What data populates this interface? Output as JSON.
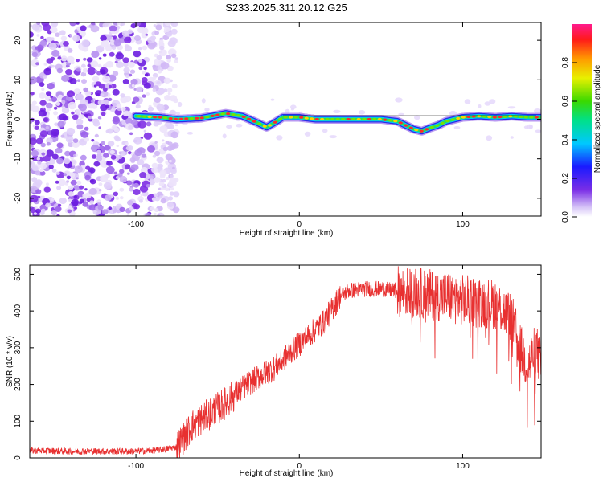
{
  "title": "S233.2025.311.20.12.G25",
  "spectrogram": {
    "type": "heatmap",
    "xlabel": "Height of straight line (km)",
    "ylabel": "Frequency (Hz)",
    "xlim": [
      -165,
      148
    ],
    "ylim": [
      -24.5,
      24.5
    ],
    "xticks": [
      -100,
      0,
      100
    ],
    "yticks": [
      -20,
      -10,
      0,
      10,
      20
    ],
    "noise_region_x": [
      -165,
      -75
    ],
    "signal_start_x": -100,
    "ridge": [
      {
        "x": -100,
        "y": 0.8
      },
      {
        "x": -85,
        "y": 0.5
      },
      {
        "x": -75,
        "y": 0.0
      },
      {
        "x": -60,
        "y": 0.3
      },
      {
        "x": -45,
        "y": 1.5
      },
      {
        "x": -35,
        "y": 0.8
      },
      {
        "x": -25,
        "y": -1.0
      },
      {
        "x": -20,
        "y": -2.0
      },
      {
        "x": -15,
        "y": -0.8
      },
      {
        "x": -10,
        "y": 0.5
      },
      {
        "x": 0,
        "y": 0.5
      },
      {
        "x": 10,
        "y": 0.0
      },
      {
        "x": 20,
        "y": 0.0
      },
      {
        "x": 30,
        "y": 0.0
      },
      {
        "x": 40,
        "y": 0.0
      },
      {
        "x": 50,
        "y": 0.0
      },
      {
        "x": 60,
        "y": -0.5
      },
      {
        "x": 65,
        "y": -1.5
      },
      {
        "x": 70,
        "y": -2.5
      },
      {
        "x": 75,
        "y": -3.0
      },
      {
        "x": 80,
        "y": -2.2
      },
      {
        "x": 85,
        "y": -1.5
      },
      {
        "x": 90,
        "y": -0.5
      },
      {
        "x": 95,
        "y": 0.0
      },
      {
        "x": 100,
        "y": 0.5
      },
      {
        "x": 110,
        "y": 0.8
      },
      {
        "x": 120,
        "y": 0.5
      },
      {
        "x": 130,
        "y": 0.8
      },
      {
        "x": 140,
        "y": 0.5
      },
      {
        "x": 148,
        "y": 0.5
      }
    ],
    "colorbar": {
      "label": "Normalized spectral amplitude",
      "ticks": [
        "0.0",
        "0.2",
        "0.4",
        "0.6",
        "0.8"
      ],
      "range": [
        0,
        1
      ]
    }
  },
  "chart_data": {
    "type": "line",
    "title": "S233.2025.311.20.12.G25",
    "xlabel": "Height of straight line (km)",
    "ylabel": "SNR (10 * v/v)",
    "xlim": [
      -165,
      148
    ],
    "ylim": [
      0,
      525
    ],
    "xticks": [
      -100,
      0,
      100
    ],
    "yticks": [
      0,
      100,
      200,
      300,
      400,
      500
    ],
    "color": "#e83030",
    "series": [
      {
        "name": "SNR",
        "x": [
          -165,
          -140,
          -120,
          -100,
          -85,
          -75,
          -65,
          -55,
          -45,
          -35,
          -25,
          -15,
          -5,
          5,
          15,
          25,
          30,
          40,
          50,
          60,
          70,
          80,
          90,
          100,
          110,
          120,
          130,
          135,
          140,
          145,
          148
        ],
        "y": [
          20,
          18,
          18,
          18,
          22,
          30,
          90,
          120,
          150,
          190,
          220,
          245,
          290,
          330,
          370,
          440,
          455,
          460,
          460,
          455,
          450,
          445,
          440,
          430,
          425,
          420,
          380,
          300,
          250,
          300,
          250
        ]
      }
    ]
  }
}
